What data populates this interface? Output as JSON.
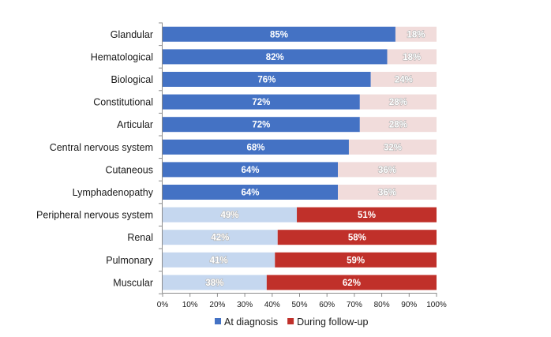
{
  "chart_data": {
    "type": "bar",
    "orientation": "horizontal",
    "stacked": "percent",
    "title": "",
    "xlabel": "",
    "ylabel": "",
    "xlim": [
      0,
      100
    ],
    "x_ticks": [
      "0%",
      "10%",
      "20%",
      "30%",
      "40%",
      "50%",
      "60%",
      "70%",
      "80%",
      "90%",
      "100%"
    ],
    "categories": [
      "Glandular",
      "Hematological",
      "Biological",
      "Constitutional",
      "Articular",
      "Central nervous system",
      "Cutaneous",
      "Lymphadenopathy",
      "Peripheral nervous system",
      "Renal",
      "Pulmonary",
      "Muscular"
    ],
    "series": [
      {
        "name": "At diagnosis",
        "values": [
          85,
          82,
          76,
          72,
          72,
          68,
          64,
          64,
          49,
          42,
          41,
          38
        ],
        "labels": [
          "85%",
          "82%",
          "76%",
          "72%",
          "72%",
          "68%",
          "64%",
          "64%",
          "49%",
          "42%",
          "41%",
          "38%"
        ],
        "color": "#4472c4",
        "light_color": "#c5d7ef"
      },
      {
        "name": "During follow-up",
        "values": [
          18,
          18,
          24,
          28,
          28,
          32,
          36,
          36,
          51,
          58,
          59,
          62
        ],
        "labels": [
          "18%",
          "18%",
          "24%",
          "28%",
          "28%",
          "32%",
          "36%",
          "36%",
          "51%",
          "58%",
          "59%",
          "62%"
        ],
        "color": "#c0302a",
        "light_color": "#f1dcdb"
      }
    ],
    "highlight": [
      "At diagnosis",
      "At diagnosis",
      "At diagnosis",
      "At diagnosis",
      "At diagnosis",
      "At diagnosis",
      "At diagnosis",
      "At diagnosis",
      "During follow-up",
      "During follow-up",
      "During follow-up",
      "During follow-up"
    ],
    "grid": false,
    "legend": {
      "position": "bottom",
      "items": [
        "At diagnosis",
        "During follow-up"
      ]
    }
  }
}
